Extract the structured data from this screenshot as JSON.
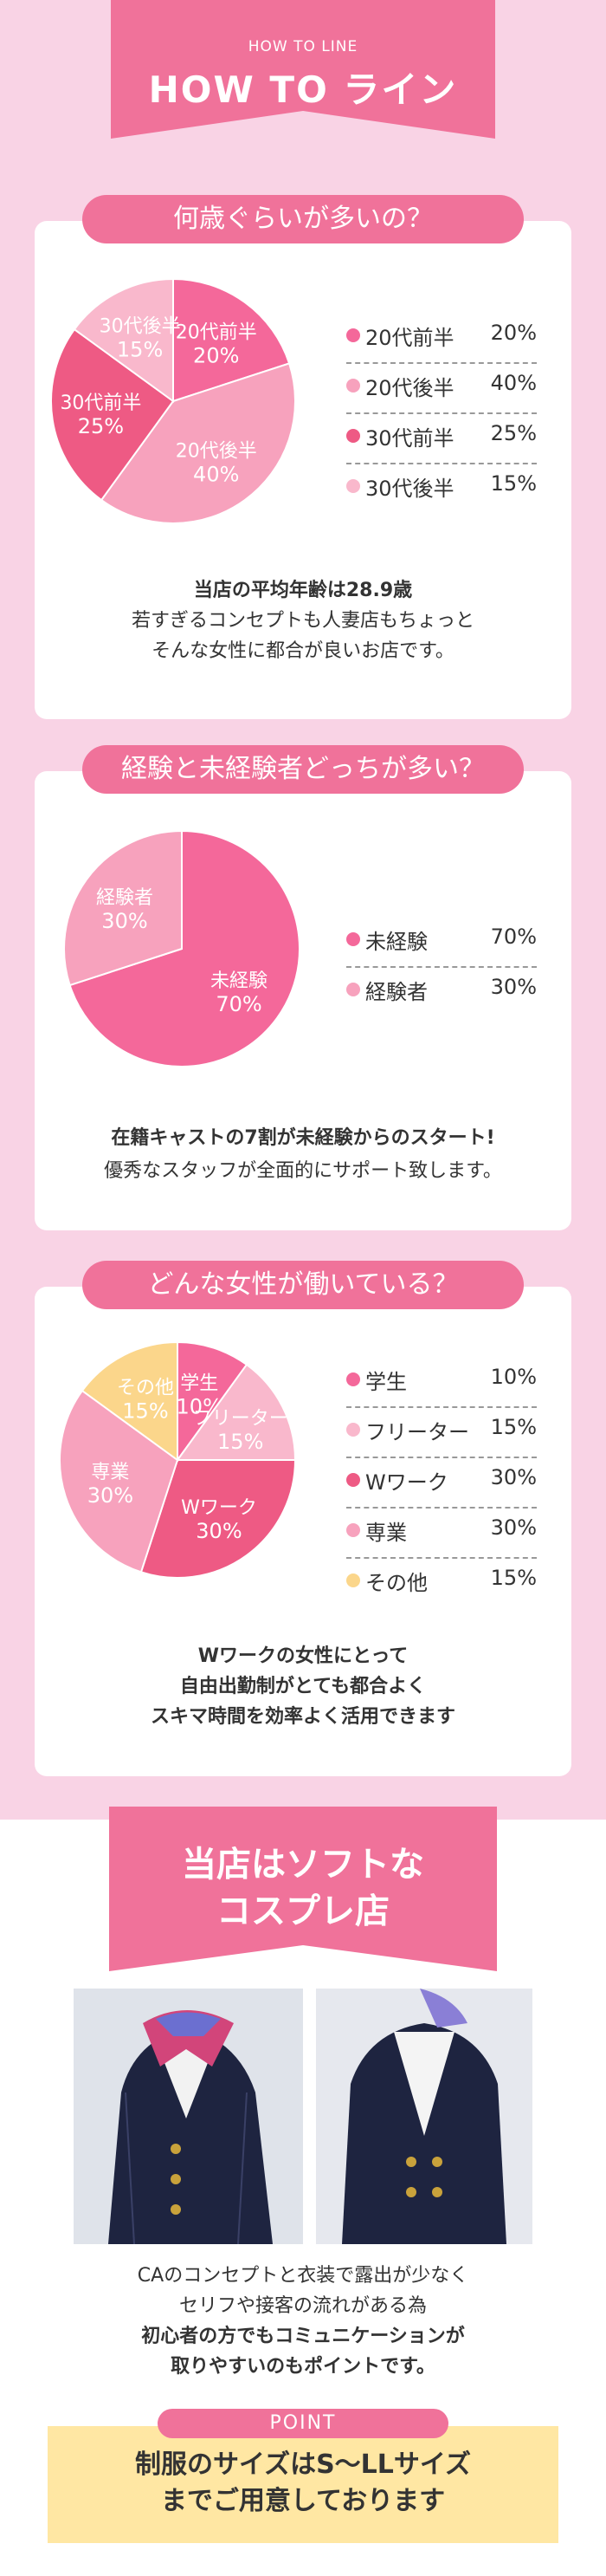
{
  "header": {
    "subtitle": "HOW TO LINE",
    "title": "HOW TO ライン"
  },
  "section1": {
    "heading": "何歳ぐらいが多いの？",
    "legend": [
      {
        "label": "20代前半",
        "pct": "20%",
        "color": "#f4689a"
      },
      {
        "label": "20代後半",
        "pct": "40%",
        "color": "#f7a2bd"
      },
      {
        "label": "30代前半",
        "pct": "25%",
        "color": "#ee5a84"
      },
      {
        "label": "30代後半",
        "pct": "15%",
        "color": "#f9b8cc"
      }
    ],
    "caption_bold": "当店の平均年齢は28.9歳",
    "caption_1": "若すぎるコンセプトも人妻店もちょっと",
    "caption_2": "そんな女性に都合が良いお店です。"
  },
  "section2": {
    "heading": "経験と未経験者どっちが多い？",
    "legend": [
      {
        "label": "未経験",
        "pct": "70%",
        "color": "#f4689a"
      },
      {
        "label": "経験者",
        "pct": "30%",
        "color": "#f7a2bd"
      }
    ],
    "caption_bold": "在籍キャストの7割が未経験からのスタート!",
    "caption_1": "優秀なスタッフが全面的にサポート致します。"
  },
  "section3": {
    "heading": "どんな女性が働いている？",
    "legend": [
      {
        "label": "学生",
        "pct": "10%",
        "color": "#f4689a"
      },
      {
        "label": "フリーター",
        "pct": "15%",
        "color": "#f9b8cc"
      },
      {
        "label": "Wワーク",
        "pct": "30%",
        "color": "#ee5a84"
      },
      {
        "label": "専業",
        "pct": "30%",
        "color": "#f7a2bd"
      },
      {
        "label": "その他",
        "pct": "15%",
        "color": "#fbd68b"
      }
    ],
    "caption_1": "Wワークの女性にとって",
    "caption_2": "自由出勤制がとても都合よく",
    "caption_3": "スキマ時間を効率よく活用できます"
  },
  "chart_data": [
    {
      "type": "pie",
      "title": "何歳ぐらいが多いの？",
      "categories": [
        "20代前半",
        "20代後半",
        "30代前半",
        "30代後半"
      ],
      "values": [
        20,
        40,
        25,
        15
      ]
    },
    {
      "type": "pie",
      "title": "経験と未経験者どっちが多い？",
      "categories": [
        "未経験",
        "経験者"
      ],
      "values": [
        70,
        30
      ]
    },
    {
      "type": "pie",
      "title": "どんな女性が働いている？",
      "categories": [
        "学生",
        "フリーター",
        "Wワーク",
        "専業",
        "その他"
      ],
      "values": [
        10,
        15,
        30,
        30,
        15
      ]
    }
  ],
  "soft": {
    "title_1": "当店はソフトな",
    "title_2": "コスプレ店",
    "desc_1": "CAのコンセプトと衣装で露出が少なく",
    "desc_2": "セリフや接客の流れがある為",
    "desc_bold_1": "初心者の方でもコミュニケーションが",
    "desc_bold_2": "取りやすいのもポイントです。",
    "point_label": "POINT",
    "point_1": "制服のサイズはS～LLサイズ",
    "point_2": "までご用意しております"
  }
}
